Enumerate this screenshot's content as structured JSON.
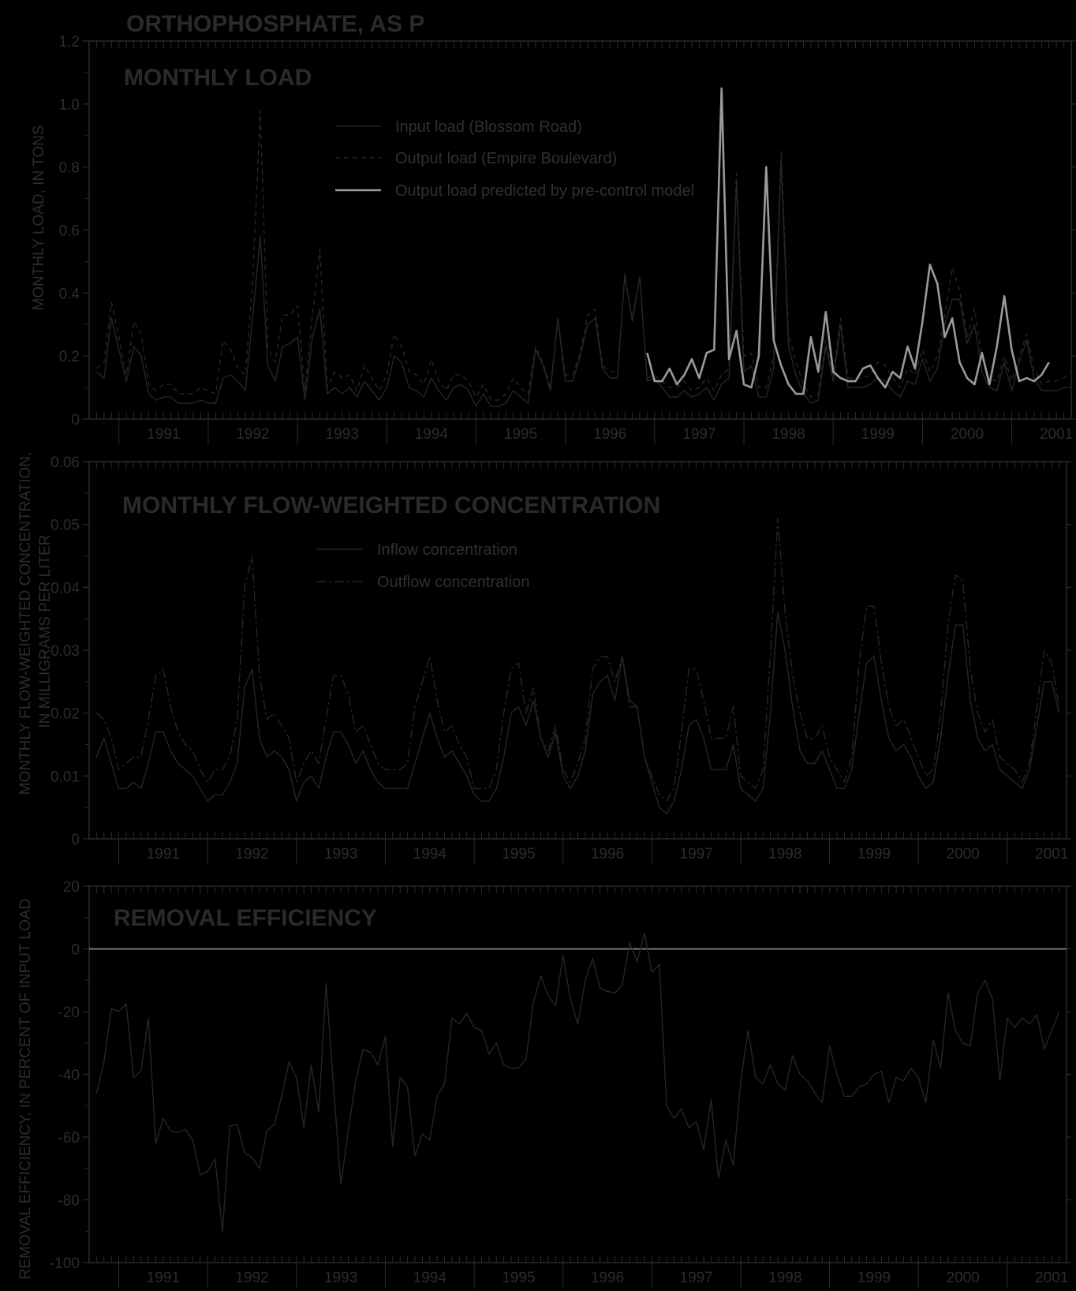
{
  "figure_title": "ORTHOPHOSPHATE, AS P",
  "colors": {
    "background": "#000000",
    "frame": "#2b2b2b",
    "series_dark": "#262626",
    "series_predicted": "#9a9a9a"
  },
  "x_tick_labels": [
    "1991",
    "1992",
    "1993",
    "1994",
    "1995",
    "1996",
    "1997",
    "1998",
    "1999",
    "2000",
    "2001"
  ],
  "shared_ylabel": "MONTHLY FLOW-WEIGHTED CONCENTRATION,",
  "chart_data": [
    {
      "type": "line",
      "title": "MONTHLY LOAD",
      "ylabel": "MONTHLY LOAD, IN TONS",
      "ylim": [
        0,
        1.2
      ],
      "yticks": [
        0,
        0.2,
        0.4,
        0.6,
        0.8,
        1.0,
        1.2
      ],
      "ytick_labels": [
        "0",
        "0.2",
        "0.4",
        "0.6",
        "0.8",
        "1.0",
        "1.2"
      ],
      "x_range": [
        "1990-09",
        "2001-09"
      ],
      "x_start": "1990-10",
      "legend_position": "top-center",
      "series": [
        {
          "name": "Input load (Blossom Road)",
          "style": "solid",
          "start": "1990-10",
          "values": [
            0.15,
            0.13,
            0.32,
            0.22,
            0.12,
            0.23,
            0.2,
            0.08,
            0.06,
            0.07,
            0.07,
            0.05,
            0.05,
            0.05,
            0.06,
            0.05,
            0.05,
            0.13,
            0.14,
            0.12,
            0.09,
            0.33,
            0.58,
            0.17,
            0.12,
            0.23,
            0.24,
            0.26,
            0.06,
            0.26,
            0.35,
            0.08,
            0.1,
            0.08,
            0.1,
            0.07,
            0.12,
            0.09,
            0.06,
            0.1,
            0.2,
            0.18,
            0.1,
            0.09,
            0.07,
            0.13,
            0.09,
            0.06,
            0.1,
            0.11,
            0.09,
            0.04,
            0.08,
            0.04,
            0.04,
            0.05,
            0.09,
            0.07,
            0.05,
            0.22,
            0.17,
            0.09,
            0.32,
            0.12,
            0.12,
            0.2,
            0.3,
            0.32,
            0.16,
            0.13,
            0.13,
            0.46,
            0.31,
            0.45,
            0.12,
            0.13,
            0.1,
            0.07,
            0.07,
            0.09,
            0.07,
            0.08,
            0.1,
            0.06,
            0.11,
            0.13,
            0.75,
            0.15,
            0.17,
            0.07,
            0.07,
            0.16,
            0.82,
            0.23,
            0.14,
            0.08,
            0.05,
            0.06,
            0.23,
            0.12,
            0.3,
            0.1,
            0.1,
            0.1,
            0.11,
            0.13,
            0.12,
            0.09,
            0.07,
            0.12,
            0.11,
            0.19,
            0.12,
            0.16,
            0.3,
            0.38,
            0.38,
            0.24,
            0.3,
            0.15,
            0.1,
            0.09,
            0.18,
            0.09,
            0.18,
            0.25,
            0.13,
            0.09,
            0.09,
            0.09,
            0.1,
            0.1
          ]
        },
        {
          "name": "Output load (Empire Boulevard)",
          "style": "dashed",
          "start": "1990-10",
          "values": [
            0.16,
            0.18,
            0.37,
            0.26,
            0.14,
            0.31,
            0.27,
            0.11,
            0.09,
            0.11,
            0.11,
            0.08,
            0.08,
            0.08,
            0.1,
            0.09,
            0.08,
            0.25,
            0.22,
            0.16,
            0.14,
            0.45,
            0.98,
            0.23,
            0.18,
            0.33,
            0.33,
            0.36,
            0.09,
            0.33,
            0.54,
            0.1,
            0.15,
            0.13,
            0.14,
            0.09,
            0.17,
            0.13,
            0.09,
            0.14,
            0.27,
            0.23,
            0.15,
            0.14,
            0.11,
            0.19,
            0.12,
            0.09,
            0.14,
            0.14,
            0.12,
            0.07,
            0.11,
            0.06,
            0.06,
            0.08,
            0.13,
            0.1,
            0.08,
            0.23,
            0.18,
            0.1,
            0.32,
            0.14,
            0.14,
            0.21,
            0.33,
            0.35,
            0.17,
            0.15,
            0.15,
            0.45,
            0.32,
            0.45,
            0.13,
            0.14,
            0.12,
            0.1,
            0.1,
            0.12,
            0.09,
            0.1,
            0.13,
            0.09,
            0.14,
            0.16,
            0.78,
            0.2,
            0.21,
            0.1,
            0.1,
            0.2,
            0.85,
            0.27,
            0.18,
            0.11,
            0.07,
            0.08,
            0.25,
            0.14,
            0.32,
            0.13,
            0.13,
            0.13,
            0.14,
            0.18,
            0.17,
            0.13,
            0.1,
            0.16,
            0.14,
            0.22,
            0.15,
            0.2,
            0.33,
            0.48,
            0.41,
            0.26,
            0.35,
            0.19,
            0.13,
            0.12,
            0.2,
            0.12,
            0.2,
            0.27,
            0.16,
            0.11,
            0.12,
            0.12,
            0.13,
            0.15
          ]
        },
        {
          "name": "Output load predicted by pre-control model",
          "style": "solid-light",
          "start": "1996-12",
          "values": [
            0.21,
            0.12,
            0.12,
            0.16,
            0.11,
            0.14,
            0.19,
            0.13,
            0.21,
            0.22,
            1.05,
            0.19,
            0.28,
            0.11,
            0.1,
            0.2,
            0.8,
            0.25,
            0.17,
            0.11,
            0.08,
            0.08,
            0.26,
            0.15,
            0.34,
            0.15,
            0.13,
            0.12,
            0.12,
            0.16,
            0.17,
            0.13,
            0.1,
            0.15,
            0.13,
            0.23,
            0.16,
            0.31,
            0.49,
            0.43,
            0.26,
            0.32,
            0.18,
            0.13,
            0.11,
            0.21,
            0.11,
            0.23,
            0.39,
            0.22,
            0.12,
            0.13,
            0.12,
            0.14,
            0.18
          ]
        }
      ]
    },
    {
      "type": "line",
      "title": "MONTHLY FLOW-WEIGHTED CONCENTRATION",
      "ylabel": "IN MILLIGRAMS PER LITER",
      "ylim": [
        0,
        0.06
      ],
      "yticks": [
        0,
        0.01,
        0.02,
        0.03,
        0.04,
        0.05,
        0.06
      ],
      "ytick_labels": [
        "0",
        "0.01",
        "0.02",
        "0.03",
        "0.04",
        "0.05",
        "0.06"
      ],
      "x_range": [
        "1990-09",
        "2001-09"
      ],
      "x_start": "1990-10",
      "legend_position": "top-center",
      "series": [
        {
          "name": "Inflow concentration",
          "style": "solid",
          "start": "1990-10",
          "values": [
            0.013,
            0.016,
            0.012,
            0.008,
            0.008,
            0.009,
            0.008,
            0.012,
            0.017,
            0.017,
            0.014,
            0.012,
            0.011,
            0.01,
            0.008,
            0.006,
            0.007,
            0.007,
            0.009,
            0.012,
            0.024,
            0.027,
            0.016,
            0.013,
            0.014,
            0.013,
            0.011,
            0.006,
            0.009,
            0.01,
            0.008,
            0.013,
            0.017,
            0.017,
            0.015,
            0.012,
            0.014,
            0.011,
            0.009,
            0.008,
            0.008,
            0.008,
            0.008,
            0.012,
            0.016,
            0.02,
            0.016,
            0.013,
            0.014,
            0.012,
            0.01,
            0.007,
            0.006,
            0.006,
            0.008,
            0.013,
            0.02,
            0.021,
            0.018,
            0.022,
            0.016,
            0.013,
            0.017,
            0.01,
            0.008,
            0.01,
            0.014,
            0.023,
            0.025,
            0.026,
            0.022,
            0.029,
            0.022,
            0.021,
            0.013,
            0.009,
            0.005,
            0.004,
            0.006,
            0.011,
            0.018,
            0.019,
            0.016,
            0.011,
            0.011,
            0.011,
            0.015,
            0.008,
            0.007,
            0.006,
            0.008,
            0.02,
            0.036,
            0.03,
            0.021,
            0.014,
            0.012,
            0.012,
            0.014,
            0.011,
            0.008,
            0.008,
            0.011,
            0.02,
            0.028,
            0.029,
            0.022,
            0.016,
            0.014,
            0.015,
            0.013,
            0.01,
            0.008,
            0.009,
            0.016,
            0.026,
            0.034,
            0.034,
            0.022,
            0.016,
            0.014,
            0.015,
            0.011,
            0.01,
            0.009,
            0.008,
            0.011,
            0.018,
            0.025,
            0.025,
            0.02
          ]
        },
        {
          "name": "Outflow concentration",
          "style": "dashdot",
          "start": "1990-10",
          "values": [
            0.02,
            0.019,
            0.016,
            0.011,
            0.012,
            0.013,
            0.013,
            0.019,
            0.026,
            0.027,
            0.021,
            0.017,
            0.015,
            0.014,
            0.011,
            0.009,
            0.011,
            0.011,
            0.013,
            0.019,
            0.04,
            0.045,
            0.026,
            0.019,
            0.02,
            0.018,
            0.016,
            0.009,
            0.012,
            0.014,
            0.012,
            0.019,
            0.026,
            0.026,
            0.023,
            0.017,
            0.018,
            0.015,
            0.012,
            0.011,
            0.011,
            0.011,
            0.012,
            0.021,
            0.025,
            0.029,
            0.022,
            0.017,
            0.018,
            0.015,
            0.013,
            0.008,
            0.008,
            0.008,
            0.011,
            0.02,
            0.027,
            0.028,
            0.02,
            0.024,
            0.016,
            0.014,
            0.018,
            0.011,
            0.009,
            0.012,
            0.016,
            0.027,
            0.029,
            0.029,
            0.025,
            0.029,
            0.021,
            0.021,
            0.013,
            0.01,
            0.007,
            0.006,
            0.008,
            0.017,
            0.027,
            0.027,
            0.022,
            0.016,
            0.016,
            0.016,
            0.021,
            0.01,
            0.009,
            0.008,
            0.011,
            0.029,
            0.051,
            0.036,
            0.026,
            0.02,
            0.016,
            0.016,
            0.018,
            0.013,
            0.011,
            0.009,
            0.013,
            0.028,
            0.037,
            0.037,
            0.028,
            0.021,
            0.018,
            0.019,
            0.016,
            0.013,
            0.01,
            0.011,
            0.02,
            0.034,
            0.042,
            0.041,
            0.027,
            0.02,
            0.017,
            0.019,
            0.013,
            0.012,
            0.011,
            0.009,
            0.012,
            0.021,
            0.03,
            0.028,
            0.021
          ]
        }
      ]
    },
    {
      "type": "line",
      "title": "REMOVAL EFFICIENCY",
      "ylabel": "REMOVAL EFFICIENCY, IN PERCENT OF INPUT LOAD",
      "ylim": [
        -100,
        20
      ],
      "yticks": [
        -100,
        -80,
        -60,
        -40,
        -20,
        0,
        20
      ],
      "ytick_labels": [
        "-100",
        "-80",
        "-60",
        "-40",
        "-20",
        "0",
        "20"
      ],
      "x_range": [
        "1990-09",
        "2001-09"
      ],
      "x_start": "1990-10",
      "zero_line": true,
      "series": [
        {
          "style": "solid",
          "start": "1990-10",
          "values": [
            -46,
            -36,
            -19,
            -20,
            -17.5,
            -41,
            -39,
            -22,
            -62,
            -54,
            -58,
            -58.5,
            -57.5,
            -61,
            -72,
            -71,
            -67,
            -90,
            -56.5,
            -56,
            -65,
            -66.5,
            -70,
            -58,
            -56,
            -47,
            -36,
            -41,
            -57,
            -37,
            -52,
            -11,
            -44,
            -75,
            -58,
            -42,
            -32,
            -33,
            -37,
            -28,
            -63,
            -41,
            -44,
            -66,
            -59,
            -61,
            -47,
            -43,
            -22,
            -24,
            -20.5,
            -25,
            -26,
            -33.5,
            -30,
            -37,
            -38,
            -38,
            -35,
            -17,
            -8.5,
            -15,
            -18,
            -2,
            -16,
            -24,
            -10,
            -3,
            -12.5,
            -13.5,
            -14,
            -11.5,
            2,
            -4,
            5,
            -7.5,
            -5,
            -50,
            -54,
            -51,
            -57,
            -55,
            -64,
            -48,
            -73,
            -61,
            -69,
            -42,
            -26,
            -41,
            -43,
            -37,
            -43,
            -45,
            -34,
            -40,
            -42,
            -46,
            -49,
            -31,
            -40,
            -47,
            -47,
            -44,
            -43,
            -40,
            -39,
            -49,
            -41,
            -42,
            -38,
            -41,
            -49,
            -29,
            -38,
            -14,
            -26,
            -30,
            -31,
            -14,
            -10,
            -16,
            -42,
            -22,
            -25,
            -22,
            -24,
            -21,
            -32,
            -26,
            -20
          ]
        }
      ]
    }
  ]
}
